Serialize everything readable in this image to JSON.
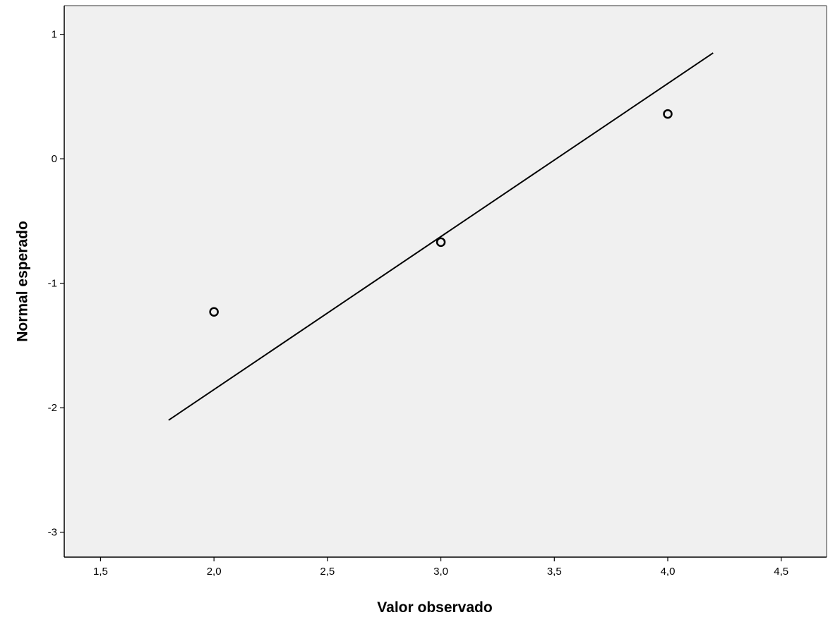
{
  "chart_data": {
    "type": "scatter",
    "title": "",
    "xlabel": "Valor observado",
    "ylabel": "Normal esperado",
    "xlim": [
      1.34,
      4.7
    ],
    "ylim": [
      -3.2,
      1.23
    ],
    "x_ticks": [
      1.5,
      2.0,
      2.5,
      3.0,
      3.5,
      4.0,
      4.5
    ],
    "x_tick_labels": [
      "1,5",
      "2,0",
      "2,5",
      "3,0",
      "3,5",
      "4,0",
      "4,5"
    ],
    "y_ticks": [
      1,
      0,
      -1,
      -2,
      -3
    ],
    "y_tick_labels": [
      "1",
      "0",
      "-1",
      "-2",
      "-3"
    ],
    "points": [
      {
        "x": 2.0,
        "y": -1.23
      },
      {
        "x": 3.0,
        "y": -0.67
      },
      {
        "x": 4.0,
        "y": 0.36
      }
    ],
    "reference_line": {
      "x": [
        1.8,
        4.2
      ],
      "y": [
        -2.1,
        0.85
      ]
    },
    "grid": false,
    "legend": "none",
    "colors": {
      "plot_background": "#f0f0f0",
      "marker": "#000000",
      "line": "#000000",
      "axis": "#000000"
    }
  }
}
